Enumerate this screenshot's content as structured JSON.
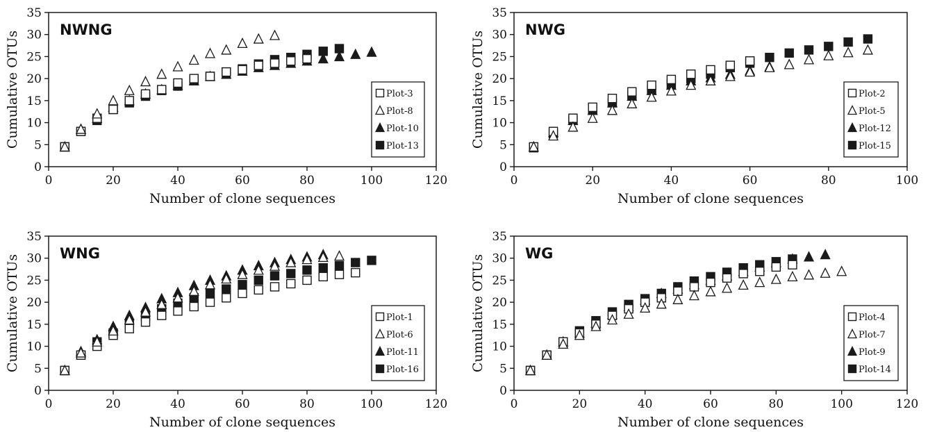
{
  "chart_data": [
    {
      "type": "scatter",
      "title": "NWNG",
      "xlabel": "Number of clone sequences",
      "ylabel": "Cumulative OTUs",
      "xlim": [
        0,
        120
      ],
      "ylim": [
        0,
        35
      ],
      "xticks": [
        0,
        20,
        40,
        60,
        80,
        100,
        120
      ],
      "yticks": [
        0,
        5,
        10,
        15,
        20,
        25,
        30,
        35
      ],
      "grid": false,
      "legend_position": "right",
      "series": [
        {
          "name": "Plot-3",
          "marker": "square-open",
          "x": [
            5,
            10,
            15,
            20,
            25,
            30,
            35,
            40,
            45,
            50,
            55,
            60,
            65,
            70,
            75,
            80
          ],
          "y": [
            4.5,
            8,
            11,
            13,
            15,
            16.5,
            17.5,
            19,
            20,
            20.5,
            21.5,
            22,
            23,
            23.5,
            24,
            24.5
          ]
        },
        {
          "name": "Plot-8",
          "marker": "triangle-open",
          "x": [
            5,
            10,
            15,
            20,
            25,
            30,
            35,
            40,
            45,
            50,
            55,
            60,
            65,
            70
          ],
          "y": [
            4.5,
            8.5,
            12,
            15,
            17.3,
            19.3,
            21,
            22.7,
            24.2,
            25.7,
            26.5,
            28,
            29,
            29.8
          ]
        },
        {
          "name": "Plot-10",
          "marker": "triangle-filled",
          "x": [
            5,
            10,
            15,
            20,
            25,
            30,
            35,
            40,
            45,
            50,
            55,
            60,
            65,
            70,
            75,
            80,
            85,
            90,
            95,
            100
          ],
          "y": [
            4.5,
            8.5,
            11,
            13.5,
            15,
            16.5,
            17.5,
            18.5,
            19.5,
            20.5,
            21,
            21.7,
            22.5,
            23,
            23.5,
            24,
            24.5,
            25,
            25.5,
            26
          ]
        },
        {
          "name": "Plot-13",
          "marker": "square-filled",
          "x": [
            5,
            10,
            15,
            20,
            25,
            30,
            35,
            40,
            45,
            50,
            55,
            60,
            65,
            70,
            75,
            80,
            85,
            90
          ],
          "y": [
            4.5,
            8,
            10.5,
            13,
            14.5,
            16,
            17.3,
            18.3,
            19.5,
            20.5,
            21.5,
            22.2,
            23.3,
            24.3,
            24.8,
            25.5,
            26.2,
            26.8
          ]
        }
      ]
    },
    {
      "type": "scatter",
      "title": "NWG",
      "xlabel": "Number of clone sequences",
      "ylabel": "Cumulative OTUs",
      "xlim": [
        0,
        100
      ],
      "ylim": [
        0,
        35
      ],
      "xticks": [
        0,
        20,
        40,
        60,
        80,
        100
      ],
      "yticks": [
        0,
        5,
        10,
        15,
        20,
        25,
        30,
        35
      ],
      "grid": false,
      "legend_position": "right",
      "series": [
        {
          "name": "Plot-2",
          "marker": "square-open",
          "x": [
            5,
            10,
            15,
            20,
            25,
            30,
            35,
            40,
            45,
            50,
            55,
            60
          ],
          "y": [
            4.5,
            8,
            11,
            13.5,
            15.5,
            17,
            18.5,
            19.8,
            21,
            22,
            23,
            24
          ]
        },
        {
          "name": "Plot-5",
          "marker": "triangle-open",
          "x": [
            5,
            10,
            15,
            20,
            25,
            30,
            35,
            40,
            45,
            50,
            55,
            60,
            65,
            70,
            75,
            80,
            85,
            90
          ],
          "y": [
            4.5,
            7,
            9,
            11,
            12.8,
            14.3,
            15.8,
            17.2,
            18.5,
            19.5,
            20.5,
            21.5,
            22.5,
            23.2,
            24.3,
            25.2,
            25.9,
            26.5
          ]
        },
        {
          "name": "Plot-12",
          "marker": "triangle-filled",
          "x": [
            5,
            10,
            15,
            20,
            25,
            30,
            35,
            40,
            45,
            50,
            55,
            60,
            65
          ],
          "y": [
            4.5,
            7.8,
            10.5,
            12.8,
            14.5,
            16,
            17.3,
            18.5,
            19.5,
            20.2,
            21,
            21.8,
            22.7
          ]
        },
        {
          "name": "Plot-15",
          "marker": "square-filled",
          "x": [
            5,
            10,
            15,
            20,
            25,
            30,
            35,
            40,
            45,
            50,
            55,
            60,
            65,
            70,
            75,
            80,
            85,
            90
          ],
          "y": [
            4.3,
            7.5,
            10.5,
            13,
            14.5,
            16.3,
            17.5,
            18.8,
            20,
            21,
            22.5,
            23.5,
            24.8,
            25.8,
            26.5,
            27.3,
            28.3,
            29
          ]
        }
      ]
    },
    {
      "type": "scatter",
      "title": "WNG",
      "xlabel": "Number of clone sequences",
      "ylabel": "Cumulative OTUs",
      "xlim": [
        0,
        120
      ],
      "ylim": [
        0,
        35
      ],
      "xticks": [
        0,
        20,
        40,
        60,
        80,
        100,
        120
      ],
      "yticks": [
        0,
        5,
        10,
        15,
        20,
        25,
        30,
        35
      ],
      "grid": false,
      "legend_position": "right",
      "series": [
        {
          "name": "Plot-1",
          "marker": "square-open",
          "x": [
            5,
            10,
            15,
            20,
            25,
            30,
            35,
            40,
            45,
            50,
            55,
            60,
            65,
            70,
            75,
            80,
            85,
            90,
            95
          ],
          "y": [
            4.5,
            8,
            10,
            12.5,
            14,
            15.5,
            17,
            18,
            19,
            20,
            21,
            22,
            22.8,
            23.5,
            24.2,
            25,
            25.8,
            26.3,
            26.7
          ]
        },
        {
          "name": "Plot-6",
          "marker": "triangle-open",
          "x": [
            5,
            10,
            15,
            20,
            25,
            30,
            35,
            40,
            45,
            50,
            55,
            60,
            65,
            70,
            75,
            80,
            85,
            90
          ],
          "y": [
            4.5,
            8.5,
            11,
            13.5,
            16,
            17.8,
            19.5,
            21,
            22.5,
            24,
            25.3,
            26.3,
            27.3,
            28.2,
            29,
            29.7,
            30.2,
            30.5
          ]
        },
        {
          "name": "Plot-11",
          "marker": "triangle-filled",
          "x": [
            5,
            10,
            15,
            20,
            25,
            30,
            35,
            40,
            45,
            50,
            55,
            60,
            65,
            70,
            75,
            80,
            85
          ],
          "y": [
            4.5,
            8.8,
            11.5,
            14.5,
            17,
            18.8,
            20.8,
            22.2,
            23.8,
            25,
            26,
            27.3,
            28.3,
            29,
            29.7,
            30.3,
            30.8
          ]
        },
        {
          "name": "Plot-16",
          "marker": "square-filled",
          "x": [
            5,
            10,
            15,
            20,
            25,
            30,
            35,
            40,
            45,
            50,
            55,
            60,
            65,
            70,
            75,
            80,
            85,
            90,
            95,
            100
          ],
          "y": [
            4.5,
            8,
            11,
            13,
            15,
            16.8,
            18.5,
            19.8,
            21,
            22,
            23,
            24,
            25,
            26,
            26.5,
            27.3,
            27.8,
            28.3,
            29,
            29.5
          ]
        }
      ]
    },
    {
      "type": "scatter",
      "title": "WG",
      "xlabel": "Number of clone sequences",
      "ylabel": "Cumulative OTUs",
      "xlim": [
        0,
        120
      ],
      "ylim": [
        0,
        35
      ],
      "xticks": [
        0,
        20,
        40,
        60,
        80,
        100,
        120
      ],
      "yticks": [
        0,
        5,
        10,
        15,
        20,
        25,
        30,
        35
      ],
      "grid": false,
      "legend_position": "right",
      "series": [
        {
          "name": "Plot-4",
          "marker": "square-open",
          "x": [
            5,
            10,
            15,
            20,
            25,
            30,
            35,
            40,
            45,
            50,
            55,
            60,
            65,
            70,
            75,
            80,
            85
          ],
          "y": [
            4.5,
            8,
            11,
            13,
            15,
            17,
            18.5,
            20,
            21,
            22.5,
            23.5,
            24.5,
            25.5,
            26.5,
            27,
            28,
            28.5
          ]
        },
        {
          "name": "Plot-7",
          "marker": "triangle-open",
          "x": [
            5,
            10,
            15,
            20,
            25,
            30,
            35,
            40,
            45,
            50,
            55,
            60,
            65,
            70,
            75,
            80,
            85,
            90,
            95,
            100
          ],
          "y": [
            4.5,
            8,
            10.5,
            12.5,
            14.5,
            16,
            17.3,
            18.7,
            19.6,
            20.6,
            21.5,
            22.4,
            23.2,
            23.9,
            24.5,
            25.2,
            25.8,
            26.2,
            26.6,
            27
          ]
        },
        {
          "name": "Plot-9",
          "marker": "triangle-filled",
          "x": [
            5,
            10,
            15,
            20,
            25,
            30,
            35,
            40,
            45,
            50,
            55,
            60,
            65,
            70,
            75,
            80,
            85,
            90,
            95
          ],
          "y": [
            4.5,
            8,
            11,
            13,
            15.3,
            17.2,
            19,
            20.5,
            22,
            23,
            24,
            25,
            26,
            27,
            28,
            29,
            29.8,
            30.3,
            30.8
          ]
        },
        {
          "name": "Plot-14",
          "marker": "square-filled",
          "x": [
            5,
            10,
            15,
            20,
            25,
            30,
            35,
            40,
            45,
            50,
            55,
            60,
            65,
            70,
            75,
            80,
            85
          ],
          "y": [
            4.5,
            8,
            11,
            13.5,
            15.8,
            17.8,
            19.5,
            20.8,
            22,
            23.5,
            24.8,
            25.8,
            26.8,
            27.8,
            28.5,
            29.2,
            29.8
          ]
        }
      ]
    }
  ]
}
